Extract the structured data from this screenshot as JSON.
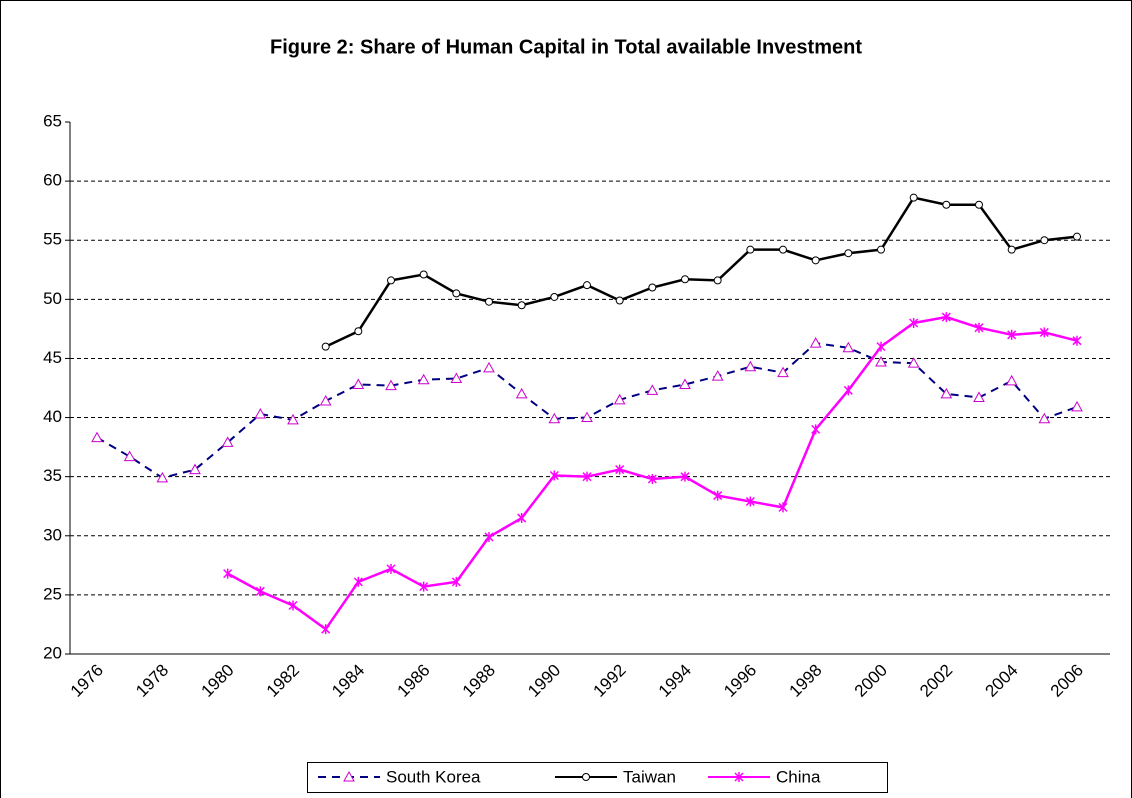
{
  "chart_data": {
    "type": "line",
    "title": "Figure 2: Share of Human Capital in Total available Investment",
    "categories": [
      "1976",
      null,
      "1978",
      null,
      "1980",
      null,
      "1982",
      null,
      "1984",
      null,
      "1986",
      null,
      "1988",
      null,
      "1990",
      null,
      "1992",
      null,
      "1994",
      null,
      "1996",
      null,
      "1998",
      null,
      "2000",
      null,
      "2002",
      null,
      "2004",
      null,
      "2006"
    ],
    "series": [
      {
        "name": "South Korea",
        "color": "#000080",
        "marker_color": "#cc00cc",
        "dash": true,
        "values": [
          38.3,
          36.7,
          34.9,
          35.6,
          37.9,
          40.3,
          39.8,
          41.4,
          42.8,
          42.7,
          43.2,
          43.3,
          44.2,
          42.0,
          39.9,
          40.0,
          41.5,
          42.3,
          42.8,
          43.5,
          44.3,
          43.8,
          46.3,
          45.9,
          44.7,
          44.6,
          42.0,
          41.7,
          43.1,
          39.9,
          40.9
        ]
      },
      {
        "name": "Taiwan",
        "color": "#000000",
        "marker_color": "#000000",
        "dash": false,
        "values": [
          null,
          null,
          null,
          null,
          null,
          null,
          null,
          46.0,
          47.3,
          51.6,
          52.1,
          50.5,
          49.8,
          49.5,
          50.2,
          51.2,
          49.9,
          51.0,
          51.7,
          51.6,
          54.2,
          54.2,
          53.3,
          53.9,
          54.2,
          58.6,
          58.0,
          58.0,
          54.2,
          55.0,
          55.3
        ]
      },
      {
        "name": "China",
        "color": "#ff00ff",
        "marker_color": "#ff00ff",
        "dash": false,
        "values": [
          null,
          null,
          null,
          null,
          26.8,
          25.3,
          24.1,
          22.1,
          26.1,
          27.2,
          25.7,
          26.1,
          29.9,
          31.5,
          35.1,
          35.0,
          35.6,
          34.8,
          35.0,
          33.4,
          32.9,
          32.4,
          39.0,
          42.3,
          46.0,
          48.0,
          48.5,
          47.6,
          47.0,
          47.2,
          46.5
        ]
      }
    ],
    "ylim": [
      20,
      65
    ],
    "yticks": [
      20,
      25,
      30,
      35,
      40,
      45,
      50,
      55,
      60,
      65
    ],
    "grid": true,
    "legend": "bottom"
  }
}
